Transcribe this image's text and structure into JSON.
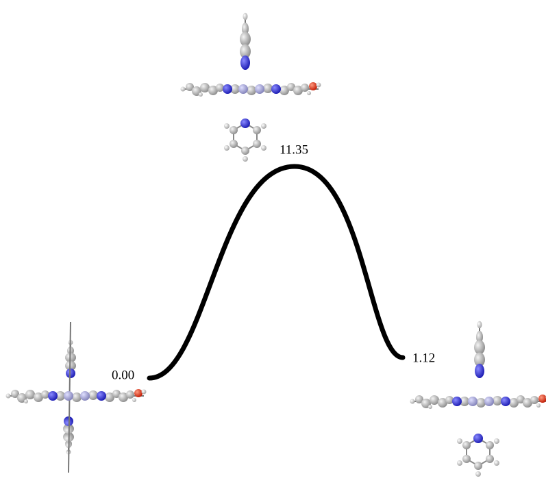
{
  "energies": [
    {
      "label": "0.00"
    },
    {
      "label": "11.35"
    },
    {
      "label": "1.12"
    }
  ]
}
